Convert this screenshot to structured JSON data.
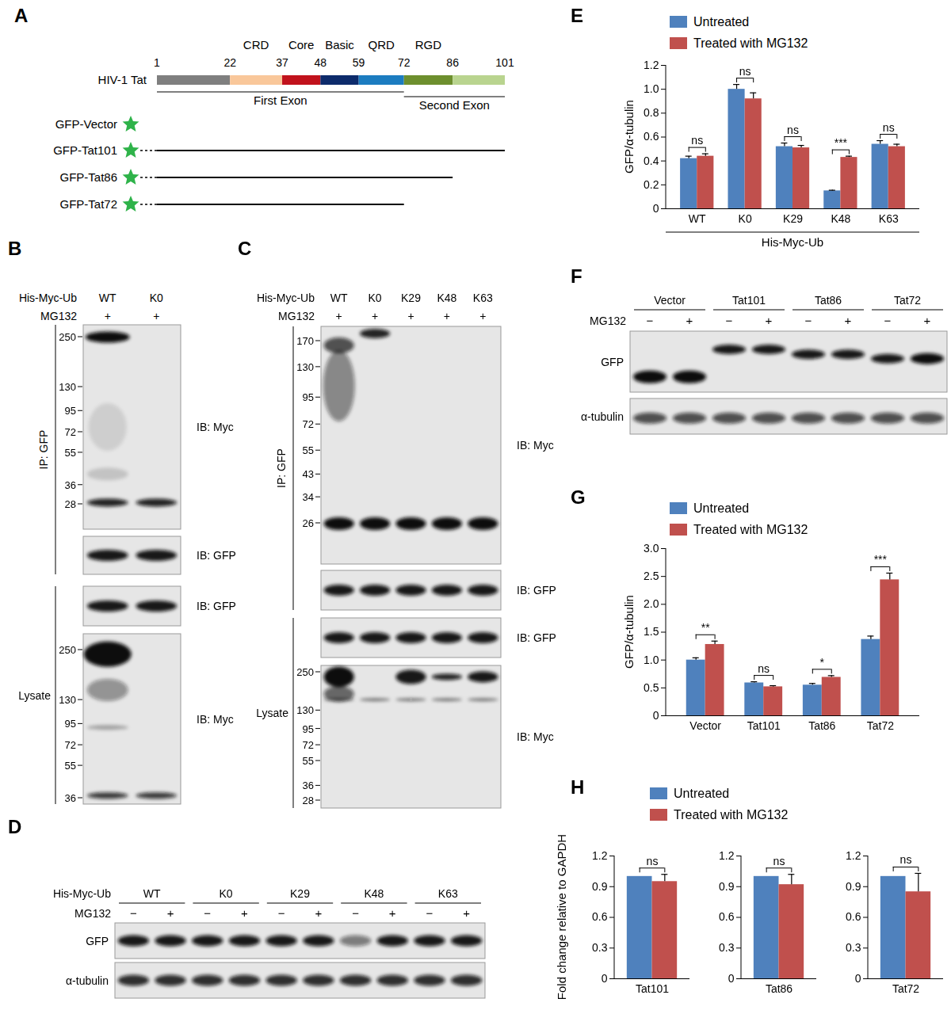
{
  "diagram": {
    "letter": "A",
    "protein": "HIV-1 Tat",
    "positions": [
      1,
      22,
      37,
      48,
      59,
      72,
      86,
      101
    ],
    "domains": [
      {
        "label": "CRD",
        "from": 22,
        "to": 37
      },
      {
        "label": "Core",
        "from": 37,
        "to": 48
      },
      {
        "label": "Basic",
        "from": 48,
        "to": 59
      },
      {
        "label": "QRD",
        "from": 59,
        "to": 72
      },
      {
        "label": "RGD",
        "from": 72,
        "to": 86
      }
    ],
    "exons": [
      {
        "label": "First Exon",
        "from": 1,
        "to": 72
      },
      {
        "label": "Second Exon",
        "from": 72,
        "to": 101
      }
    ],
    "constructs": [
      {
        "label": "GFP-Vector",
        "end": null
      },
      {
        "label": "GFP-Tat101",
        "end": 101
      },
      {
        "label": "GFP-Tat86",
        "end": 86
      },
      {
        "label": "GFP-Tat72",
        "end": 72
      }
    ]
  },
  "blots": {
    "B": {
      "letter": "B",
      "header": [
        {
          "label": "His-Myc-Ub",
          "lanes": [
            "WT",
            "K0"
          ]
        },
        {
          "label": "MG132",
          "lanes": [
            "+",
            "+"
          ]
        }
      ],
      "sections": [
        {
          "label": "IP: GFP",
          "blots": [
            {
              "ib": "IB: Myc",
              "markers": [
                250,
                130,
                95,
                72,
                55,
                36,
                28
              ]
            },
            {
              "ib": "IB: GFP",
              "markers": []
            }
          ]
        },
        {
          "label": "Lysate",
          "blots": [
            {
              "ib": "IB: GFP",
              "markers": []
            },
            {
              "ib": "IB: Myc",
              "markers": [
                250,
                130,
                95,
                72,
                55,
                36
              ]
            }
          ]
        }
      ]
    },
    "C": {
      "letter": "C",
      "header": [
        {
          "label": "His-Myc-Ub",
          "lanes": [
            "WT",
            "K0",
            "K29",
            "K48",
            "K63"
          ]
        },
        {
          "label": "MG132",
          "lanes": [
            "+",
            "+",
            "+",
            "+",
            "+"
          ]
        }
      ],
      "sections": [
        {
          "label": "IP: GFP",
          "blots": [
            {
              "ib": "IB: Myc",
              "markers": [
                170,
                130,
                95,
                72,
                55,
                43,
                34,
                26
              ]
            },
            {
              "ib": "IB: GFP",
              "markers": []
            }
          ]
        },
        {
          "label": "Lysate",
          "blots": [
            {
              "ib": "IB: GFP",
              "markers": []
            },
            {
              "ib": "IB: Myc",
              "markers": [
                250,
                130,
                95,
                72,
                55,
                36,
                28
              ]
            }
          ]
        }
      ]
    },
    "D": {
      "letter": "D",
      "header": [
        {
          "label": "His-Myc-Ub",
          "groups": [
            "WT",
            "K0",
            "K29",
            "K48",
            "K63"
          ]
        },
        {
          "label": "MG132",
          "lanes": [
            "−",
            "+",
            "−",
            "+",
            "−",
            "+",
            "−",
            "+",
            "−",
            "+"
          ]
        }
      ],
      "rows": [
        "GFP",
        "α-tubulin"
      ]
    },
    "F": {
      "letter": "F",
      "header": [
        {
          "groups": [
            "Vector",
            "Tat101",
            "Tat86",
            "Tat72"
          ]
        },
        {
          "label": "MG132",
          "lanes": [
            "−",
            "+",
            "−",
            "+",
            "−",
            "+",
            "−",
            "+"
          ]
        }
      ],
      "rows": [
        "GFP",
        "α-tubulin"
      ]
    }
  },
  "chart_data": [
    {
      "letter": "E",
      "type": "bar",
      "categories": [
        "WT",
        "K0",
        "K29",
        "K48",
        "K63"
      ],
      "x_label": "His-Myc-Ub",
      "y_label": "GFP/α-tubulin",
      "ylim": [
        0,
        1.2
      ],
      "yticks": [
        0,
        0.2,
        0.4,
        0.6,
        0.8,
        {
          "value": 1,
          "label": "1.0"
        },
        1.2
      ],
      "legend": "top",
      "series": [
        {
          "name": "Untreated",
          "color": "#4f81bd",
          "values": [
            0.42,
            1.0,
            0.52,
            0.15,
            0.54
          ],
          "errors": [
            0.02,
            0.04,
            0.03,
            0.005,
            0.03
          ]
        },
        {
          "name": "Treated with MG132",
          "color": "#c0504d",
          "values": [
            0.44,
            0.92,
            0.51,
            0.43,
            0.52
          ],
          "errors": [
            0.02,
            0.05,
            0.02,
            0.01,
            0.02
          ]
        }
      ],
      "significance": [
        "ns",
        "ns",
        "ns",
        "***",
        "ns"
      ]
    },
    {
      "letter": "G",
      "type": "bar",
      "categories": [
        "Vector",
        "Tat101",
        "Tat86",
        "Tat72"
      ],
      "y_label": "GFP/α-tubulin",
      "ylim": [
        0,
        3
      ],
      "yticks": [
        0,
        0.5,
        {
          "value": 1,
          "label": "1.0"
        },
        1.5,
        {
          "value": 2,
          "label": "2.0"
        },
        2.5,
        {
          "value": 3,
          "label": "3.0"
        }
      ],
      "legend": "top",
      "series": [
        {
          "name": "Untreated",
          "color": "#4f81bd",
          "values": [
            1.0,
            0.59,
            0.55,
            1.37
          ],
          "errors": [
            0.04,
            0.02,
            0.03,
            0.06
          ]
        },
        {
          "name": "Treated with MG132",
          "color": "#c0504d",
          "values": [
            1.28,
            0.52,
            0.69,
            2.44
          ],
          "errors": [
            0.06,
            0.02,
            0.03,
            0.12
          ]
        }
      ],
      "significance": [
        "**",
        "ns",
        "*",
        "***"
      ]
    },
    {
      "letter": "H",
      "type": "bar",
      "categories": [
        "Tat101",
        "Tat86",
        "Tat72"
      ],
      "y_label": "Fold change relative to GAPDH",
      "ylim": [
        0,
        1.2
      ],
      "yticks": [
        0,
        0.3,
        0.6,
        0.9,
        1.2
      ],
      "legend": "top",
      "series": [
        {
          "name": "Untreated",
          "color": "#4f81bd",
          "values": [
            1.0,
            1.0,
            1.0
          ],
          "errors": [
            0,
            0,
            0
          ]
        },
        {
          "name": "Treated with MG132",
          "color": "#c0504d",
          "values": [
            0.95,
            0.92,
            0.85
          ],
          "errors": [
            0.07,
            0.1,
            0.18
          ]
        }
      ],
      "significance": [
        "ns",
        "ns",
        "ns"
      ]
    }
  ]
}
